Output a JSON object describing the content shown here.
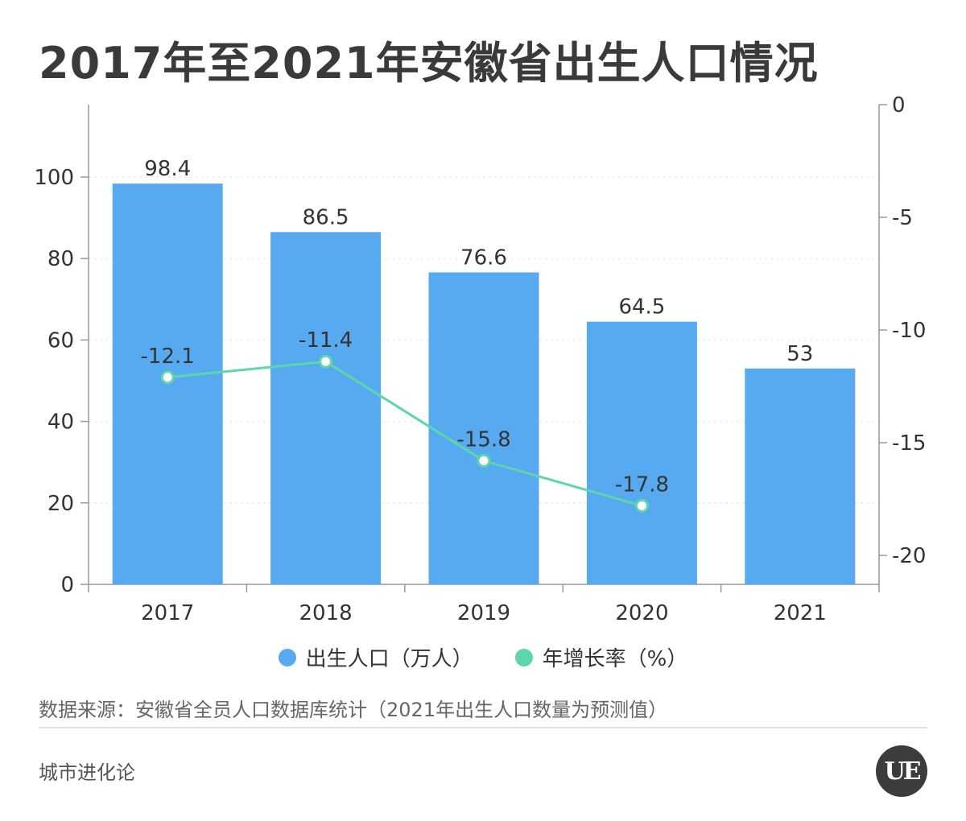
{
  "title": "2017年至2021年安徽省出生人口情况",
  "chart_data": {
    "type": "bar",
    "categories": [
      "2017",
      "2018",
      "2019",
      "2020",
      "2021"
    ],
    "series": [
      {
        "name": "出生人口（万人）",
        "type": "bar",
        "axis": "left",
        "values": [
          98.4,
          86.5,
          76.6,
          64.5,
          53
        ],
        "labels": [
          "98.4",
          "86.5",
          "76.6",
          "64.5",
          "53"
        ],
        "color": "#57aaf0"
      },
      {
        "name": "年增长率（%）",
        "type": "line",
        "axis": "right",
        "values": [
          -12.1,
          -11.4,
          -15.8,
          -17.8,
          null
        ],
        "labels": [
          "-12.1",
          "-11.4",
          "-15.8",
          "-17.8",
          ""
        ],
        "color": "#5dd6ac"
      }
    ],
    "y_left": {
      "ylim": [
        0,
        100
      ],
      "ticks": [
        "0",
        "20",
        "40",
        "60",
        "80",
        "100"
      ]
    },
    "y_right": {
      "ylim": [
        -20,
        0
      ],
      "ticks": [
        "0",
        "-5",
        "-10",
        "-15",
        "-20"
      ]
    },
    "grid": true,
    "legend_position": "bottom-center"
  },
  "footer": {
    "source": "数据来源：安徽省全员人口数据库统计（2021年出生人口数量为预测值）",
    "brand": "城市进化论",
    "logo_text": "UE"
  }
}
